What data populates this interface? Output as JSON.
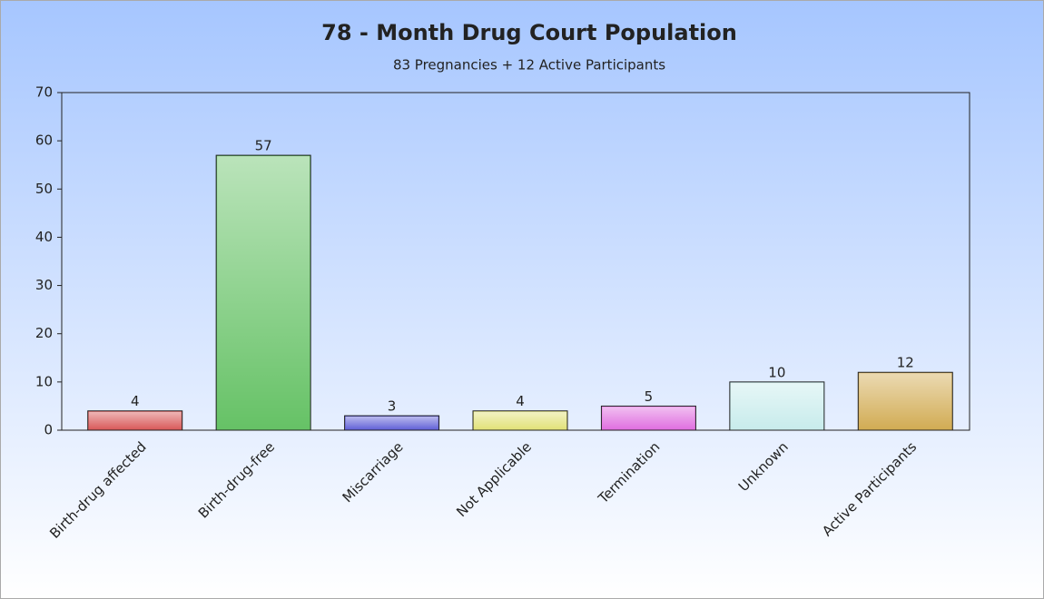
{
  "chart_data": {
    "type": "bar",
    "title": "78 - Month Drug Court Population",
    "subtitle": "83 Pregnancies + 12 Active Participants",
    "categories": [
      "Birth-drug affected",
      "Birth-drug-free",
      "Miscarriage",
      "Not Applicable",
      "Termination",
      "Unknown",
      "Active Participants"
    ],
    "values": [
      4,
      57,
      3,
      4,
      5,
      10,
      12
    ],
    "colors": [
      "#d95c5c",
      "#66c266",
      "#6464d8",
      "#e2e27a",
      "#e070e0",
      "#c8ecec",
      "#d2ac54"
    ],
    "ylim": [
      0,
      70
    ],
    "yticks": [
      0,
      10,
      20,
      30,
      40,
      50,
      60,
      70
    ]
  }
}
